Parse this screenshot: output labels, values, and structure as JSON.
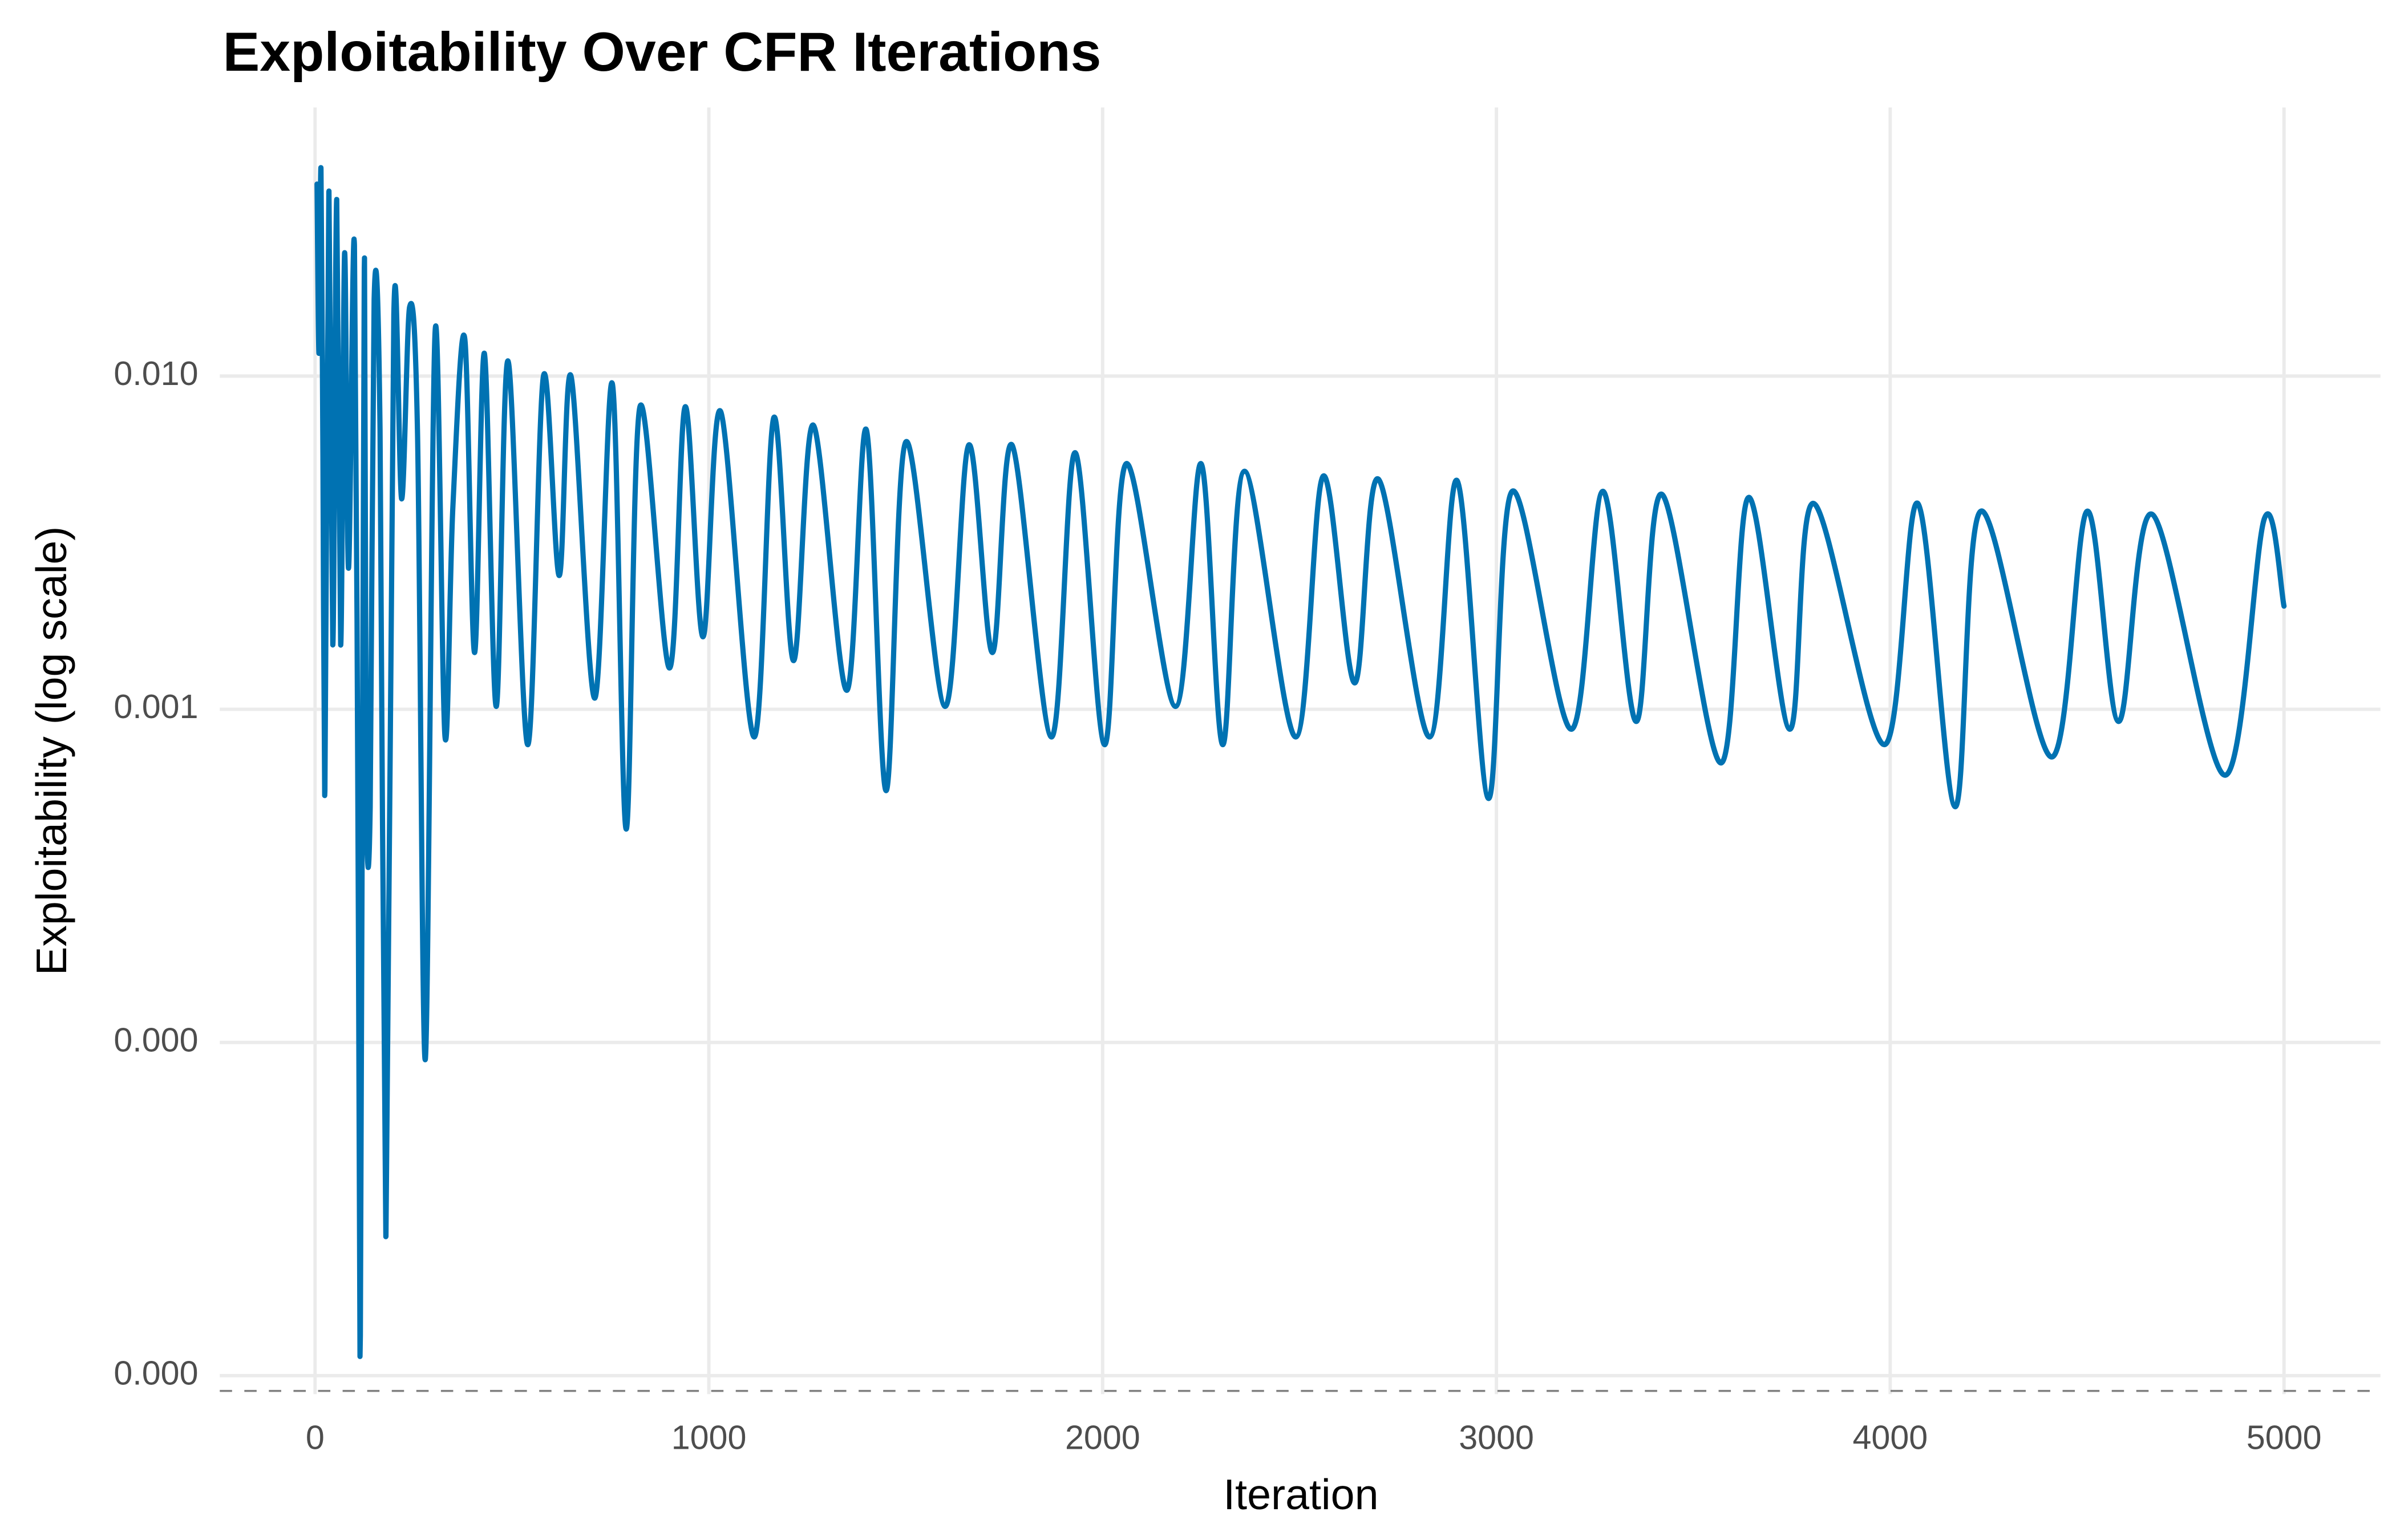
{
  "chart_data": {
    "type": "line",
    "title": "Exploitability Over CFR Iterations",
    "x_label": "Iteration",
    "y_label": "Exploitability (log scale)",
    "log_y": true,
    "grid": true,
    "reference_line": 9e-06,
    "xlim": [
      -242,
      5245
    ],
    "xticks": [
      0,
      1000,
      2000,
      3000,
      4000,
      5000
    ],
    "ylim": [
      8.8e-06,
      0.064
    ],
    "yticks": [
      {
        "value": 0.01,
        "label": "0.010"
      },
      {
        "value": 0.001,
        "label": "0.001"
      },
      {
        "value": 0.0001,
        "label": "0.000"
      },
      {
        "value": 1e-05,
        "label": "0.000"
      }
    ],
    "x": [
      5,
      10,
      15,
      20,
      25,
      35,
      45,
      55,
      65,
      75,
      85,
      100,
      110,
      115,
      125,
      130,
      140,
      150,
      165,
      180,
      200,
      220,
      240,
      260,
      280,
      305,
      330,
      350,
      380,
      405,
      430,
      460,
      490,
      540,
      580,
      620,
      650,
      710,
      755,
      790,
      825,
      900,
      940,
      985,
      1030,
      1115,
      1165,
      1215,
      1265,
      1350,
      1400,
      1450,
      1500,
      1600,
      1660,
      1720,
      1770,
      1870,
      1930,
      2005,
      2060,
      2185,
      2250,
      2305,
      2360,
      2490,
      2560,
      2640,
      2700,
      2830,
      2900,
      2980,
      3040,
      3190,
      3270,
      3355,
      3420,
      3570,
      3640,
      3745,
      3805,
      3985,
      4070,
      4165,
      4230,
      4410,
      4500,
      4580,
      4665,
      4850,
      4950,
      5000
    ],
    "series": [
      {
        "name": "Exploitability",
        "color": "#0072b2",
        "values": [
          0.0377,
          0.0117,
          0.0419,
          0.00558,
          0.00057,
          0.0357,
          0.00156,
          0.0339,
          0.00156,
          0.0234,
          0.00265,
          0.0247,
          0.000231,
          1.32e-05,
          0.0211,
          0.00054,
          0.00051,
          0.017,
          0.0069,
          2.62e-05,
          0.0153,
          0.00428,
          0.0161,
          0.0069,
          8.9e-05,
          0.0137,
          0.000826,
          0.00406,
          0.013,
          0.00148,
          0.0117,
          0.00102,
          0.0111,
          0.000783,
          0.01,
          0.00252,
          0.01,
          0.00108,
          0.00948,
          0.000437,
          0.00809,
          0.00133,
          0.00809,
          0.00165,
          0.00783,
          0.000826,
          0.00751,
          0.0014,
          0.00713,
          0.00114,
          0.0069,
          0.00057,
          0.00634,
          0.00102,
          0.00621,
          0.00148,
          0.00621,
          0.000826,
          0.00589,
          0.000783,
          0.00546,
          0.00102,
          0.00546,
          0.000783,
          0.00518,
          0.000826,
          0.00501,
          0.0012,
          0.00491,
          0.000826,
          0.00486,
          0.00054,
          0.00451,
          0.000871,
          0.00451,
          0.000919,
          0.00442,
          0.00069,
          0.00432,
          0.000871,
          0.00415,
          0.000783,
          0.00415,
          0.00051,
          0.00393,
          0.000719,
          0.00393,
          0.000919,
          0.00385,
          0.000634,
          0.00373,
          0.00204
        ]
      }
    ]
  }
}
